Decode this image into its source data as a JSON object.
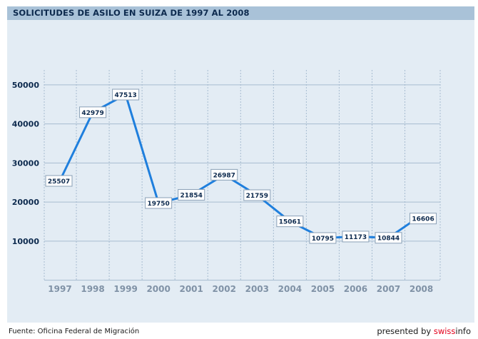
{
  "chart_data": {
    "type": "line",
    "title": "SOLICITUDES DE ASILO EN SUIZA DE 1997 AL 2008",
    "x": [
      "1997",
      "1998",
      "1999",
      "2000",
      "2001",
      "2002",
      "2003",
      "2004",
      "2005",
      "2006",
      "2007",
      "2008"
    ],
    "series": [
      {
        "values": [
          25507,
          42979,
          47513,
          19750,
          21854,
          26987,
          21759,
          15061,
          10795,
          11173,
          10844,
          16606
        ]
      }
    ],
    "yticks": [
      10000,
      20000,
      30000,
      40000,
      50000
    ],
    "ylim": [
      0,
      52000
    ],
    "grid": true,
    "colors": {
      "line": "#1f7fdd",
      "grid": "#a7bcd0",
      "axis_text": "#0d2a4e",
      "x_text": "#8092a6"
    }
  },
  "footer": {
    "source": "Fuente: Oficina Federal de Migración",
    "presented_by": "presented by",
    "brand_swiss": "swiss",
    "brand_info": "info"
  }
}
